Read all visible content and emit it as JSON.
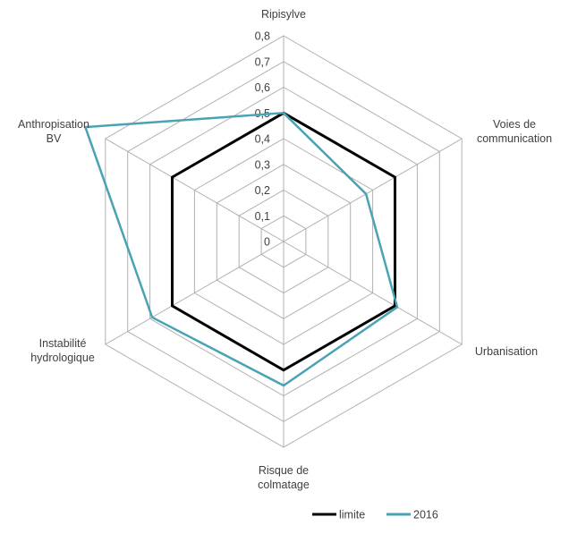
{
  "chart_data": {
    "type": "radar",
    "axes": [
      [
        "Ripisylve"
      ],
      [
        "Voies de",
        "communication"
      ],
      [
        "Urbanisation"
      ],
      [
        "Risque de",
        "colmatage"
      ],
      [
        "Instabilité",
        "hydrologique"
      ],
      [
        "Anthropisation",
        "BV"
      ]
    ],
    "ticks": [
      "0",
      "0,1",
      "0,2",
      "0,3",
      "0,4",
      "0,5",
      "0,6",
      "0,7",
      "0,8"
    ],
    "rmax": 0.8,
    "series": [
      {
        "name": "limite",
        "color": "#000000",
        "values": [
          0.5,
          0.5,
          0.5,
          0.5,
          0.5,
          0.5
        ]
      },
      {
        "name": "2016",
        "color": "#4aa3b5",
        "values": [
          0.5,
          0.37,
          0.51,
          0.56,
          0.59,
          0.89
        ]
      }
    ],
    "grid_color": "#b0b0b0",
    "legend_position": "bottom-center"
  }
}
